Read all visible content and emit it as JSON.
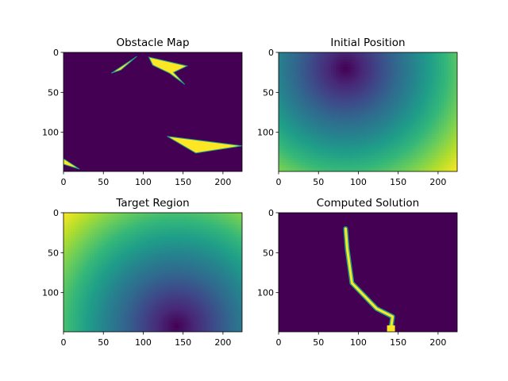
{
  "colors": {
    "viridis": [
      "#440154",
      "#482878",
      "#3e4989",
      "#31688e",
      "#26828e",
      "#1f9e89",
      "#35b779",
      "#6ece58",
      "#b5de2b",
      "#fde725"
    ],
    "background": "#440154",
    "foreground": "#fde725"
  },
  "chart_data": [
    {
      "type": "heatmap",
      "title": "Obstacle Map",
      "xlabel": "",
      "ylabel": "",
      "xlim": [
        0,
        224
      ],
      "ylim": [
        149,
        0
      ],
      "x_ticks": [
        0,
        50,
        100,
        150,
        200
      ],
      "y_ticks": [
        0,
        50,
        100
      ],
      "field": "binary",
      "polygons": [
        [
          [
            60,
            26
          ],
          [
            92,
            5
          ],
          [
            72,
            22
          ]
        ],
        [
          [
            107,
            6
          ],
          [
            155,
            17
          ],
          [
            138,
            25
          ],
          [
            152,
            40
          ],
          [
            133,
            26
          ],
          [
            112,
            16
          ]
        ],
        [
          [
            130,
            105
          ],
          [
            224,
            117
          ],
          [
            166,
            126
          ]
        ],
        [
          [
            0,
            133
          ],
          [
            20,
            146
          ],
          [
            0,
            140
          ]
        ]
      ]
    },
    {
      "type": "heatmap",
      "title": "Initial Position",
      "xlabel": "",
      "ylabel": "",
      "xlim": [
        0,
        224
      ],
      "ylim": [
        149,
        0
      ],
      "x_ticks": [
        0,
        50,
        100,
        150,
        200
      ],
      "y_ticks": [
        0,
        50,
        100
      ],
      "field": "distance",
      "center": [
        84,
        20
      ]
    },
    {
      "type": "heatmap",
      "title": "Target Region",
      "xlabel": "",
      "ylabel": "",
      "xlim": [
        0,
        224
      ],
      "ylim": [
        149,
        0
      ],
      "x_ticks": [
        0,
        50,
        100,
        150,
        200
      ],
      "y_ticks": [
        0,
        50,
        100
      ],
      "field": "distance",
      "center": [
        142,
        142
      ]
    },
    {
      "type": "heatmap",
      "title": "Computed Solution",
      "xlabel": "",
      "ylabel": "",
      "xlim": [
        0,
        224
      ],
      "ylim": [
        149,
        0
      ],
      "x_ticks": [
        0,
        50,
        100,
        150,
        200
      ],
      "y_ticks": [
        0,
        50,
        100
      ],
      "field": "path",
      "path": [
        [
          84,
          20
        ],
        [
          86,
          45
        ],
        [
          92,
          88
        ],
        [
          123,
          120
        ],
        [
          143,
          130
        ],
        [
          141,
          144
        ]
      ],
      "target_block": [
        [
          136,
          141
        ],
        [
          146,
          149
        ]
      ]
    }
  ]
}
